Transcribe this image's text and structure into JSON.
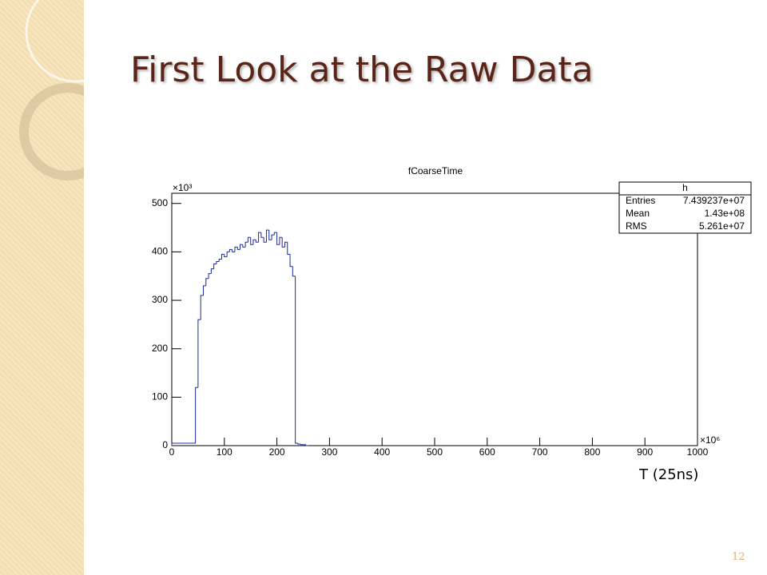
{
  "slide": {
    "title": "First Look at the Raw Data",
    "page_number": "12",
    "annotation": "T (25ns)"
  },
  "chart_data": {
    "type": "histogram",
    "title": "fCoarseTime",
    "x_multiplier": "×10⁶",
    "y_multiplier": "×10³",
    "bins": [
      0,
      5,
      10,
      15,
      20,
      25,
      30,
      35,
      40,
      45,
      50,
      55,
      60,
      65,
      70,
      75,
      80,
      85,
      90,
      95,
      100,
      105,
      110,
      115,
      120,
      125,
      130,
      135,
      140,
      145,
      150,
      155,
      160,
      165,
      170,
      175,
      180,
      185,
      190,
      195,
      200,
      205,
      210,
      215,
      220,
      225,
      230,
      235,
      240,
      245,
      250,
      255,
      260
    ],
    "values": [
      5,
      5,
      5,
      5,
      5,
      5,
      5,
      5,
      5,
      120,
      260,
      310,
      330,
      345,
      355,
      365,
      375,
      380,
      385,
      395,
      390,
      400,
      405,
      400,
      410,
      405,
      415,
      410,
      420,
      430,
      415,
      425,
      420,
      440,
      430,
      420,
      445,
      425,
      435,
      440,
      415,
      430,
      410,
      420,
      395,
      370,
      350,
      5,
      3,
      2,
      2,
      0
    ],
    "color": "#1a2aa0",
    "xlim": [
      0,
      1000
    ],
    "xticks": [
      0,
      100,
      200,
      300,
      400,
      500,
      600,
      700,
      800,
      900,
      1000
    ],
    "ylim": [
      0,
      521
    ],
    "yticks": [
      0,
      100,
      200,
      300,
      400,
      500
    ],
    "stats": {
      "title": "h",
      "rows": [
        [
          "Entries",
          "7.439237e+07"
        ],
        [
          "Mean",
          "1.43e+08"
        ],
        [
          "RMS",
          "5.261e+07"
        ]
      ]
    }
  }
}
